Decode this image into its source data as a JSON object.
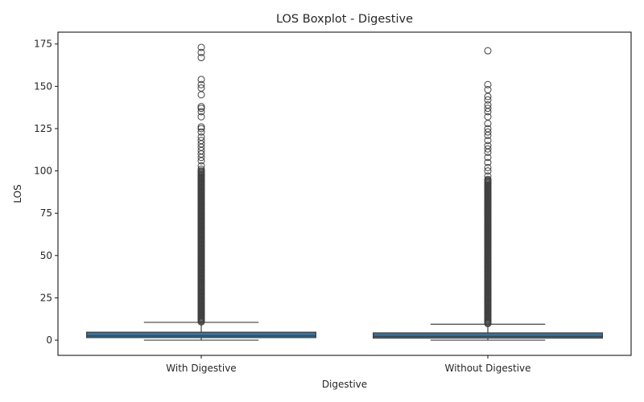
{
  "chart_data": {
    "type": "boxplot",
    "title": "LOS Boxplot - Digestive",
    "xlabel": "Digestive",
    "ylabel": "LOS",
    "categories": [
      "With Digestive",
      "Without Digestive"
    ],
    "ylim": [
      -9,
      182
    ],
    "yticks": [
      0,
      25,
      50,
      75,
      100,
      125,
      150,
      175
    ],
    "grid": false,
    "box_color": "#3274a1",
    "line_color": "#3f3f3f",
    "boxes": [
      {
        "category": "With Digestive",
        "min": 0,
        "q1": 1.5,
        "median": 2.5,
        "q3": 4.7,
        "whisker_high": 10.5,
        "outlier_dense_range": [
          10.8,
          100
        ],
        "outliers": [
          101,
          103,
          106,
          108,
          110,
          112,
          114,
          116,
          118,
          120,
          123,
          125,
          126,
          132,
          135,
          137,
          138,
          145,
          149,
          151,
          154,
          167,
          170,
          173
        ]
      },
      {
        "category": "Without Digestive",
        "min": 0,
        "q1": 1.2,
        "median": 2.2,
        "q3": 4.3,
        "whisker_high": 9.4,
        "outlier_dense_range": [
          9.8,
          95
        ],
        "outliers": [
          97,
          100,
          102,
          105,
          108,
          111,
          113,
          115,
          118,
          121,
          123,
          125,
          128,
          132,
          135,
          137,
          139,
          142,
          144,
          148,
          151,
          171
        ]
      }
    ]
  }
}
